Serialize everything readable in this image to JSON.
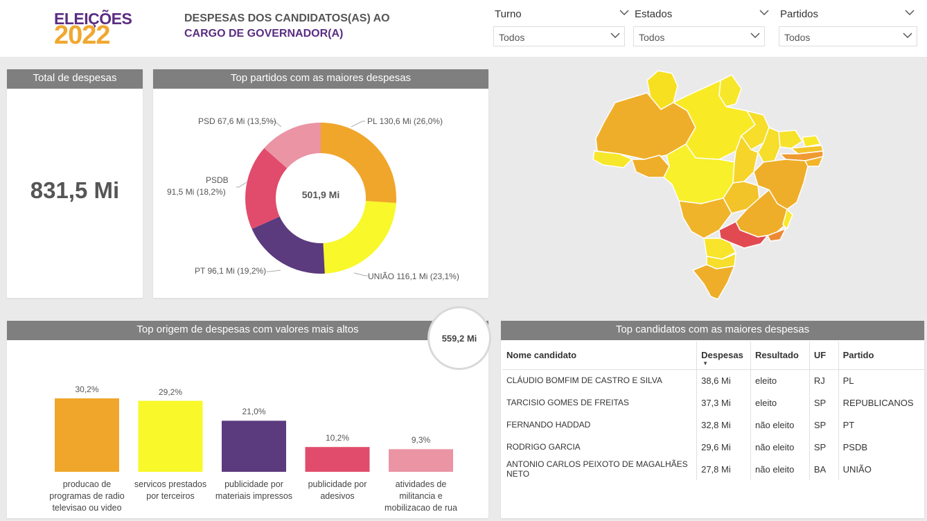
{
  "logo": {
    "line1": "ELEIÇÕES",
    "line2": "2022"
  },
  "header": {
    "title_line1": "DESPESAS DOS CANDIDATOS(AS) AO",
    "title_line2": "CARGO DE GOVERNADOR(A)"
  },
  "filters": [
    {
      "label": "Turno",
      "value": "Todos"
    },
    {
      "label": "Estados",
      "value": "Todos"
    },
    {
      "label": "Partidos",
      "value": "Todos"
    }
  ],
  "total": {
    "title": "Total de despesas",
    "value": "831,5 Mi"
  },
  "top_parties": {
    "title": "Top partidos com as maiores despesas",
    "center": "501,9 Mi",
    "labels": {
      "pl": "PL 130,6 Mi (26,0%)",
      "uniao": "UNIÃO 116,1 Mi (23,1%)",
      "pt": "PT 96,1 Mi (19,2%)",
      "psdb_name": "PSDB",
      "psdb_value": "91,5 Mi (18,2%)",
      "psd": "PSD 67,6 Mi (13,5%)"
    }
  },
  "origins": {
    "title": "Top origem de despesas com valores mais altos",
    "bubble": "559,2 Mi",
    "bars": [
      {
        "label": "30,2%",
        "cat1": "producao de",
        "cat2": "programas de radio",
        "cat3": "televisao ou video"
      },
      {
        "label": "29,2%",
        "cat1": "servicos prestados",
        "cat2": "por terceiros",
        "cat3": ""
      },
      {
        "label": "21,0%",
        "cat1": "publicidade por",
        "cat2": "materiais impressos",
        "cat3": ""
      },
      {
        "label": "10,2%",
        "cat1": "publicidade por",
        "cat2": "adesivos",
        "cat3": ""
      },
      {
        "label": "9,3%",
        "cat1": "atividades de",
        "cat2": "militancia e",
        "cat3": "mobilizacao de rua"
      }
    ]
  },
  "candidates": {
    "title": "Top candidatos com as maiores despesas",
    "columns": [
      "Nome candidato",
      "Despesas",
      "Resultado",
      "UF",
      "Partido"
    ],
    "rows": [
      {
        "name": "CLÁUDIO BOMFIM DE CASTRO E SILVA",
        "name2": "",
        "value": "38,6 Mi",
        "result": "eleito",
        "uf": "RJ",
        "party": "PL"
      },
      {
        "name": "TARCISIO GOMES DE FREITAS",
        "name2": "",
        "value": "37,3 Mi",
        "result": "eleito",
        "uf": "SP",
        "party": "REPUBLICANOS"
      },
      {
        "name": "FERNANDO HADDAD",
        "name2": "",
        "value": "32,8 Mi",
        "result": "não eleito",
        "uf": "SP",
        "party": "PT"
      },
      {
        "name": "RODRIGO GARCIA",
        "name2": "",
        "value": "29,6 Mi",
        "result": "não eleito",
        "uf": "SP",
        "party": "PSDB"
      },
      {
        "name": "ANTONIO CARLOS PEIXOTO DE MAGALHÃES",
        "name2": "NETO",
        "value": "27,8 Mi",
        "result": "não eleito",
        "uf": "BA",
        "party": "UNIÃO"
      }
    ]
  },
  "chart_data": [
    {
      "type": "pie",
      "title": "Top partidos com as maiores despesas",
      "categories": [
        "PL",
        "UNIÃO",
        "PT",
        "PSDB",
        "PSD"
      ],
      "values": [
        130.6,
        116.1,
        96.1,
        91.5,
        67.6
      ],
      "percentages": [
        26.0,
        23.1,
        19.2,
        18.2,
        13.5
      ],
      "colors": [
        "#f0a62a",
        "#f8f82a",
        "#5b3a7e",
        "#e14c6c",
        "#ea94a4"
      ],
      "center": "501,9 Mi"
    },
    {
      "type": "bar",
      "title": "Top origem de despesas com valores mais altos",
      "categories": [
        "producao de programas de radio televisao ou video",
        "servicos prestados por terceiros",
        "publicidade por materiais impressos",
        "publicidade por adesivos",
        "atividades de militancia e mobilizacao de rua"
      ],
      "values": [
        30.2,
        29.2,
        21.0,
        10.2,
        9.3
      ],
      "colors": [
        "#f0a62a",
        "#f8f82a",
        "#5b3a7e",
        "#e14c6c",
        "#ea94a4"
      ],
      "ylim": [
        0,
        30.2
      ]
    }
  ],
  "colors": {
    "header_bar": "#7f7f7f",
    "brand_purple": "#5a2d82",
    "brand_orange": "#f0a830",
    "map_highlight": "#e24a52"
  }
}
